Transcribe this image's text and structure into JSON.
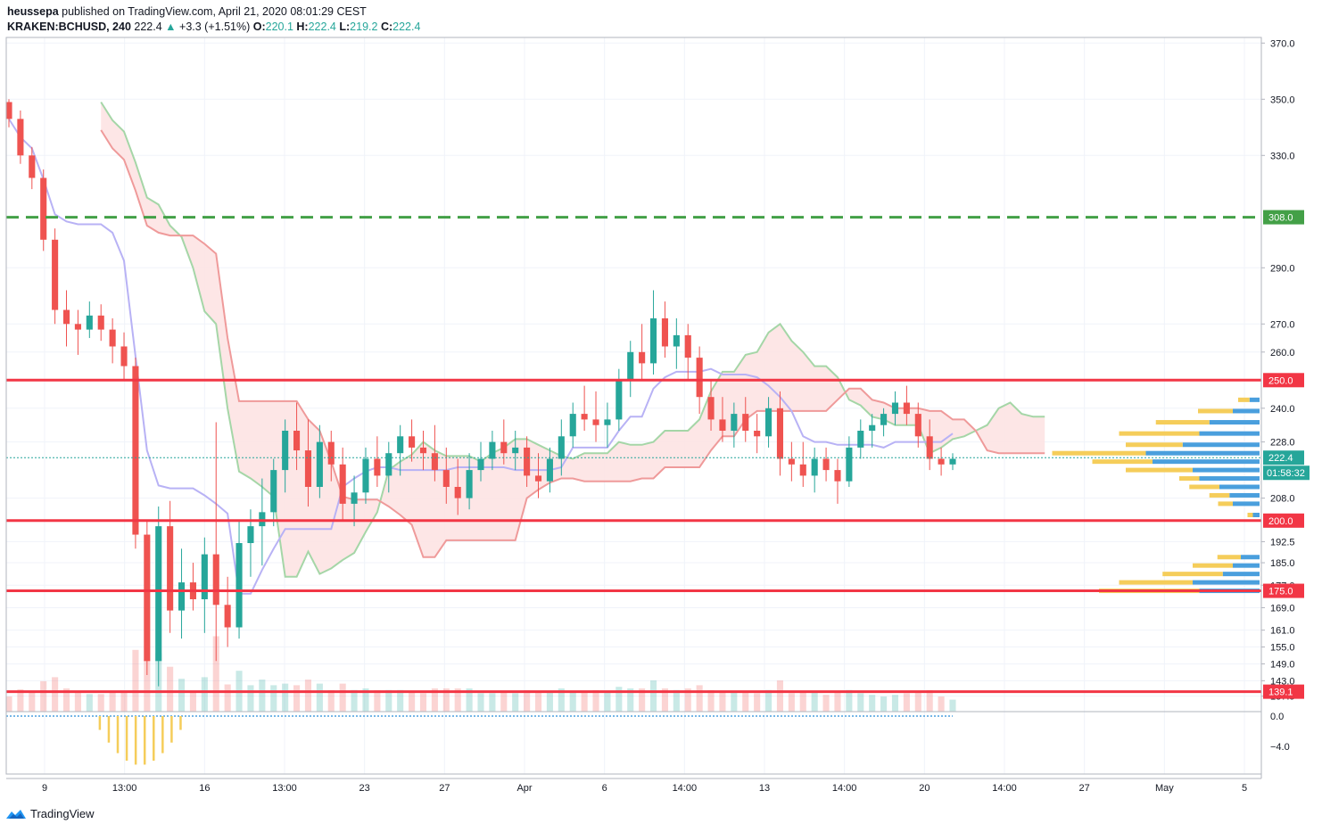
{
  "header": {
    "author": "heussepa",
    "published_text": " published on TradingView.com, April 21, 2020 08:01:29 CEST",
    "symbol": "KRAKEN:BCHUSD, 240",
    "last": "222.4",
    "change_arrow": "▲",
    "change": "+3.3 (+1.51%)",
    "o_label": "O:",
    "o_value": "220.1",
    "h_label": "H:",
    "h_value": "222.4",
    "l_label": "L:",
    "l_value": "219.2",
    "c_label": "C:",
    "c_value": "222.4"
  },
  "brand": {
    "name": "TradingView"
  },
  "colors": {
    "up": "#26a69a",
    "down": "#ef5350",
    "red_line": "#f23645",
    "green_dash": "#43a047",
    "span_a": "#a5d6a7",
    "span_b": "#ef9a9a",
    "cloud_red": "#fde2e2",
    "cloud_green": "#e3f1e6",
    "kijun": "#b8b2f5",
    "vp_up": "#4a9fdd",
    "vp_down": "#f5cd5a",
    "vp_up_light": "#cde5f7",
    "vp_down_light": "#fbecc2"
  },
  "chart_data": {
    "type": "candlestick",
    "price_axis": {
      "range": [
        132,
        372
      ],
      "ticks": [
        "370.0",
        "350.0",
        "330.0",
        "290.0",
        "270.0",
        "260.0",
        "240.0",
        "228.0",
        "208.0",
        "192.5",
        "185.0",
        "177.0",
        "169.0",
        "161.0",
        "155.0",
        "149.0",
        "143.0",
        "137.5"
      ],
      "tick_values": [
        370,
        350,
        330,
        290,
        270,
        260,
        240,
        228,
        208,
        192.5,
        185,
        177,
        169,
        161,
        155,
        149,
        143,
        137.5
      ]
    },
    "oscillator_axis": {
      "ticks": [
        "0.0",
        "−4.0"
      ],
      "tick_values": [
        0,
        -4
      ]
    },
    "time_axis": {
      "ticks": [
        "9",
        "13:00",
        "16",
        "13:00",
        "23",
        "27",
        "Apr",
        "6",
        "14:00",
        "13",
        "14:00",
        "20",
        "14:00",
        "27",
        "May",
        "5"
      ]
    },
    "horizontal_lines": [
      {
        "price": 308.0,
        "label": "308.0",
        "style": "dashed",
        "color": "#43a047"
      },
      {
        "price": 250.0,
        "label": "250.0",
        "style": "solid",
        "color": "#f23645"
      },
      {
        "price": 200.0,
        "label": "200.0",
        "style": "solid",
        "color": "#f23645"
      },
      {
        "price": 175.0,
        "label": "175.0",
        "style": "solid",
        "color": "#f23645"
      },
      {
        "price": 139.1,
        "label": "139.1",
        "style": "solid",
        "color": "#f23645"
      }
    ],
    "last_price": {
      "price": 222.4,
      "label": "222.4",
      "countdown": "01:58:32"
    },
    "candles": [
      [
        349,
        350,
        340,
        343
      ],
      [
        343,
        346,
        327,
        330
      ],
      [
        330,
        333,
        318,
        322
      ],
      [
        322,
        325,
        296,
        300
      ],
      [
        300,
        304,
        270,
        275
      ],
      [
        275,
        282,
        262,
        270
      ],
      [
        270,
        275,
        259,
        268
      ],
      [
        268,
        278,
        265,
        273
      ],
      [
        273,
        277,
        264,
        268
      ],
      [
        268,
        272,
        256,
        262
      ],
      [
        262,
        267,
        250,
        255
      ],
      [
        255,
        258,
        190,
        195
      ],
      [
        195,
        200,
        145,
        150
      ],
      [
        150,
        205,
        141,
        198
      ],
      [
        198,
        207,
        160,
        168
      ],
      [
        168,
        190,
        158,
        178
      ],
      [
        178,
        185,
        168,
        172
      ],
      [
        172,
        194,
        160,
        188
      ],
      [
        188,
        235,
        150,
        170
      ],
      [
        170,
        180,
        155,
        162
      ],
      [
        162,
        200,
        158,
        192
      ],
      [
        192,
        204,
        180,
        198
      ],
      [
        198,
        215,
        184,
        203
      ],
      [
        203,
        222,
        198,
        218
      ],
      [
        218,
        236,
        210,
        232
      ],
      [
        232,
        242,
        218,
        225
      ],
      [
        225,
        236,
        205,
        212
      ],
      [
        212,
        234,
        208,
        228
      ],
      [
        228,
        232,
        214,
        220
      ],
      [
        220,
        226,
        200,
        206
      ],
      [
        206,
        216,
        198,
        210
      ],
      [
        210,
        226,
        206,
        222
      ],
      [
        222,
        230,
        212,
        216
      ],
      [
        216,
        228,
        210,
        224
      ],
      [
        224,
        234,
        216,
        230
      ],
      [
        230,
        236,
        221,
        226
      ],
      [
        226,
        232,
        218,
        224
      ],
      [
        224,
        234,
        214,
        218
      ],
      [
        218,
        226,
        206,
        212
      ],
      [
        212,
        222,
        202,
        208
      ],
      [
        208,
        224,
        204,
        218
      ],
      [
        218,
        228,
        214,
        222
      ],
      [
        222,
        232,
        218,
        228
      ],
      [
        228,
        236,
        220,
        224
      ],
      [
        224,
        232,
        218,
        226
      ],
      [
        226,
        230,
        212,
        216
      ],
      [
        216,
        224,
        208,
        214
      ],
      [
        214,
        226,
        210,
        222
      ],
      [
        222,
        236,
        216,
        230
      ],
      [
        230,
        242,
        226,
        238
      ],
      [
        238,
        248,
        232,
        236
      ],
      [
        236,
        246,
        228,
        234
      ],
      [
        234,
        242,
        226,
        236
      ],
      [
        236,
        254,
        232,
        250
      ],
      [
        250,
        264,
        244,
        260
      ],
      [
        260,
        270,
        250,
        256
      ],
      [
        256,
        282,
        252,
        272
      ],
      [
        272,
        278,
        258,
        262
      ],
      [
        262,
        272,
        254,
        266
      ],
      [
        266,
        270,
        250,
        258
      ],
      [
        258,
        262,
        238,
        244
      ],
      [
        244,
        250,
        232,
        236
      ],
      [
        236,
        244,
        228,
        232
      ],
      [
        232,
        242,
        226,
        238
      ],
      [
        238,
        244,
        228,
        232
      ],
      [
        232,
        238,
        224,
        230
      ],
      [
        230,
        244,
        226,
        240
      ],
      [
        240,
        246,
        216,
        222
      ],
      [
        222,
        228,
        214,
        220
      ],
      [
        220,
        228,
        212,
        216
      ],
      [
        216,
        226,
        210,
        222
      ],
      [
        222,
        226,
        214,
        218
      ],
      [
        218,
        222,
        206,
        214
      ],
      [
        214,
        230,
        212,
        226
      ],
      [
        226,
        236,
        222,
        232
      ],
      [
        232,
        238,
        226,
        234
      ],
      [
        234,
        240,
        230,
        238
      ],
      [
        238,
        246,
        234,
        242
      ],
      [
        242,
        248,
        234,
        238
      ],
      [
        238,
        242,
        226,
        230
      ],
      [
        230,
        236,
        218,
        222
      ],
      [
        222,
        226,
        216,
        220
      ],
      [
        220,
        224,
        218,
        222
      ]
    ],
    "volume_profile": [
      {
        "price": 243,
        "up": 15,
        "down": 17
      },
      {
        "price": 239,
        "up": 40,
        "down": 52
      },
      {
        "price": 235,
        "up": 75,
        "down": 80
      },
      {
        "price": 231,
        "up": 90,
        "down": 120
      },
      {
        "price": 227,
        "up": 115,
        "down": 85
      },
      {
        "price": 224,
        "up": 170,
        "down": 140
      },
      {
        "price": 221,
        "up": 160,
        "down": 90
      },
      {
        "price": 218,
        "up": 100,
        "down": 100
      },
      {
        "price": 215,
        "up": 90,
        "down": 30
      },
      {
        "price": 212,
        "up": 60,
        "down": 45
      },
      {
        "price": 209,
        "up": 45,
        "down": 30
      },
      {
        "price": 206,
        "up": 40,
        "down": 22
      },
      {
        "price": 202,
        "up": 10,
        "down": 8
      },
      {
        "price": 187,
        "up": 28,
        "down": 35
      },
      {
        "price": 184,
        "up": 40,
        "down": 60
      },
      {
        "price": 181,
        "up": 55,
        "down": 90
      },
      {
        "price": 178,
        "up": 100,
        "down": 110
      },
      {
        "price": 175,
        "up": 90,
        "down": 150
      }
    ]
  }
}
